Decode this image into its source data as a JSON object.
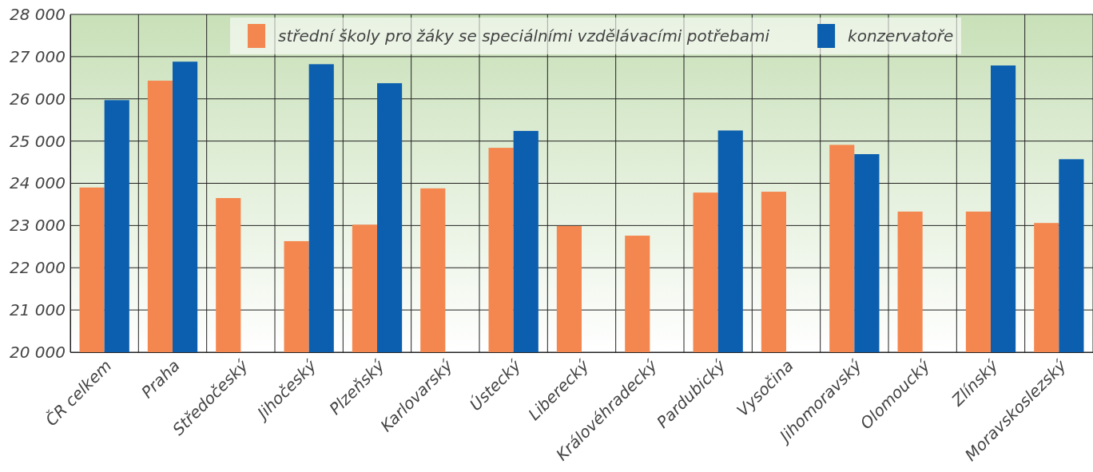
{
  "chart_data": {
    "type": "bar",
    "categories": [
      "ČR celkem",
      "Praha",
      "Středočeský",
      "Jihočeský",
      "Plzeňský",
      "Karlovarský",
      "Ústecký",
      "Liberecký",
      "Královéhradecký",
      "Pardubický",
      "Vysočina",
      "Jihomoravský",
      "Olomoucký",
      "Zlínský",
      "Moravskoslezský"
    ],
    "series": [
      {
        "name": "střední školy pro žáky se speciálními vzdělávacími potřebami",
        "color": "#f4874f",
        "values": [
          23900,
          26430,
          23650,
          22630,
          23020,
          23880,
          24840,
          22990,
          22760,
          23780,
          23800,
          24910,
          23330,
          23330,
          23060
        ]
      },
      {
        "name": "konzervatoře",
        "color": "#0b5fae",
        "values": [
          25970,
          26880,
          null,
          26820,
          26370,
          null,
          25240,
          null,
          null,
          25250,
          null,
          24690,
          null,
          26790,
          24570
        ]
      }
    ],
    "ylim": [
      20000,
      28000
    ],
    "yticks": [
      {
        "value": 20000,
        "label": "20 000"
      },
      {
        "value": 21000,
        "label": "21 000"
      },
      {
        "value": 22000,
        "label": "22 000"
      },
      {
        "value": 23000,
        "label": "23 000"
      },
      {
        "value": 24000,
        "label": "24 000"
      },
      {
        "value": 25000,
        "label": "25 000"
      },
      {
        "value": 26000,
        "label": "26 000"
      },
      {
        "value": 27000,
        "label": "27 000"
      },
      {
        "value": 28000,
        "label": "28 000"
      }
    ],
    "grid": true,
    "legend": "top"
  }
}
